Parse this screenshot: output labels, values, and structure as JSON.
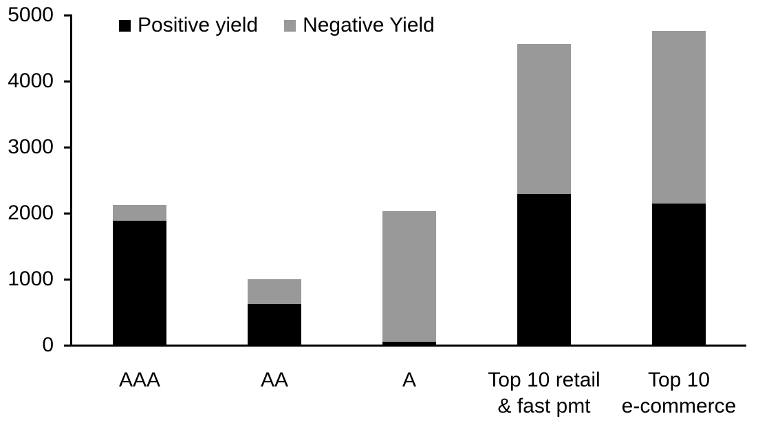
{
  "chart_data": {
    "type": "bar",
    "stacked": true,
    "title": "",
    "xlabel": "",
    "ylabel": "",
    "categories": [
      "AAA",
      "AA",
      "A",
      "Top 10 retail\n& fast pmt",
      "Top 10\ne-commerce"
    ],
    "series": [
      {
        "name": "Positive yield",
        "color": "#000000",
        "values": [
          1890,
          620,
          50,
          2290,
          2150
        ]
      },
      {
        "name": "Negative Yield",
        "color": "#999999",
        "values": [
          235,
          380,
          1980,
          2270,
          2610
        ]
      }
    ],
    "totals": [
      2125,
      1000,
      2030,
      4560,
      4760
    ],
    "ylim": [
      0,
      5000
    ],
    "yticks": [
      0,
      1000,
      2000,
      3000,
      4000,
      5000
    ],
    "grid": false,
    "legend_position": "top-inside",
    "axis_color": "#000000",
    "background": "#ffffff"
  }
}
